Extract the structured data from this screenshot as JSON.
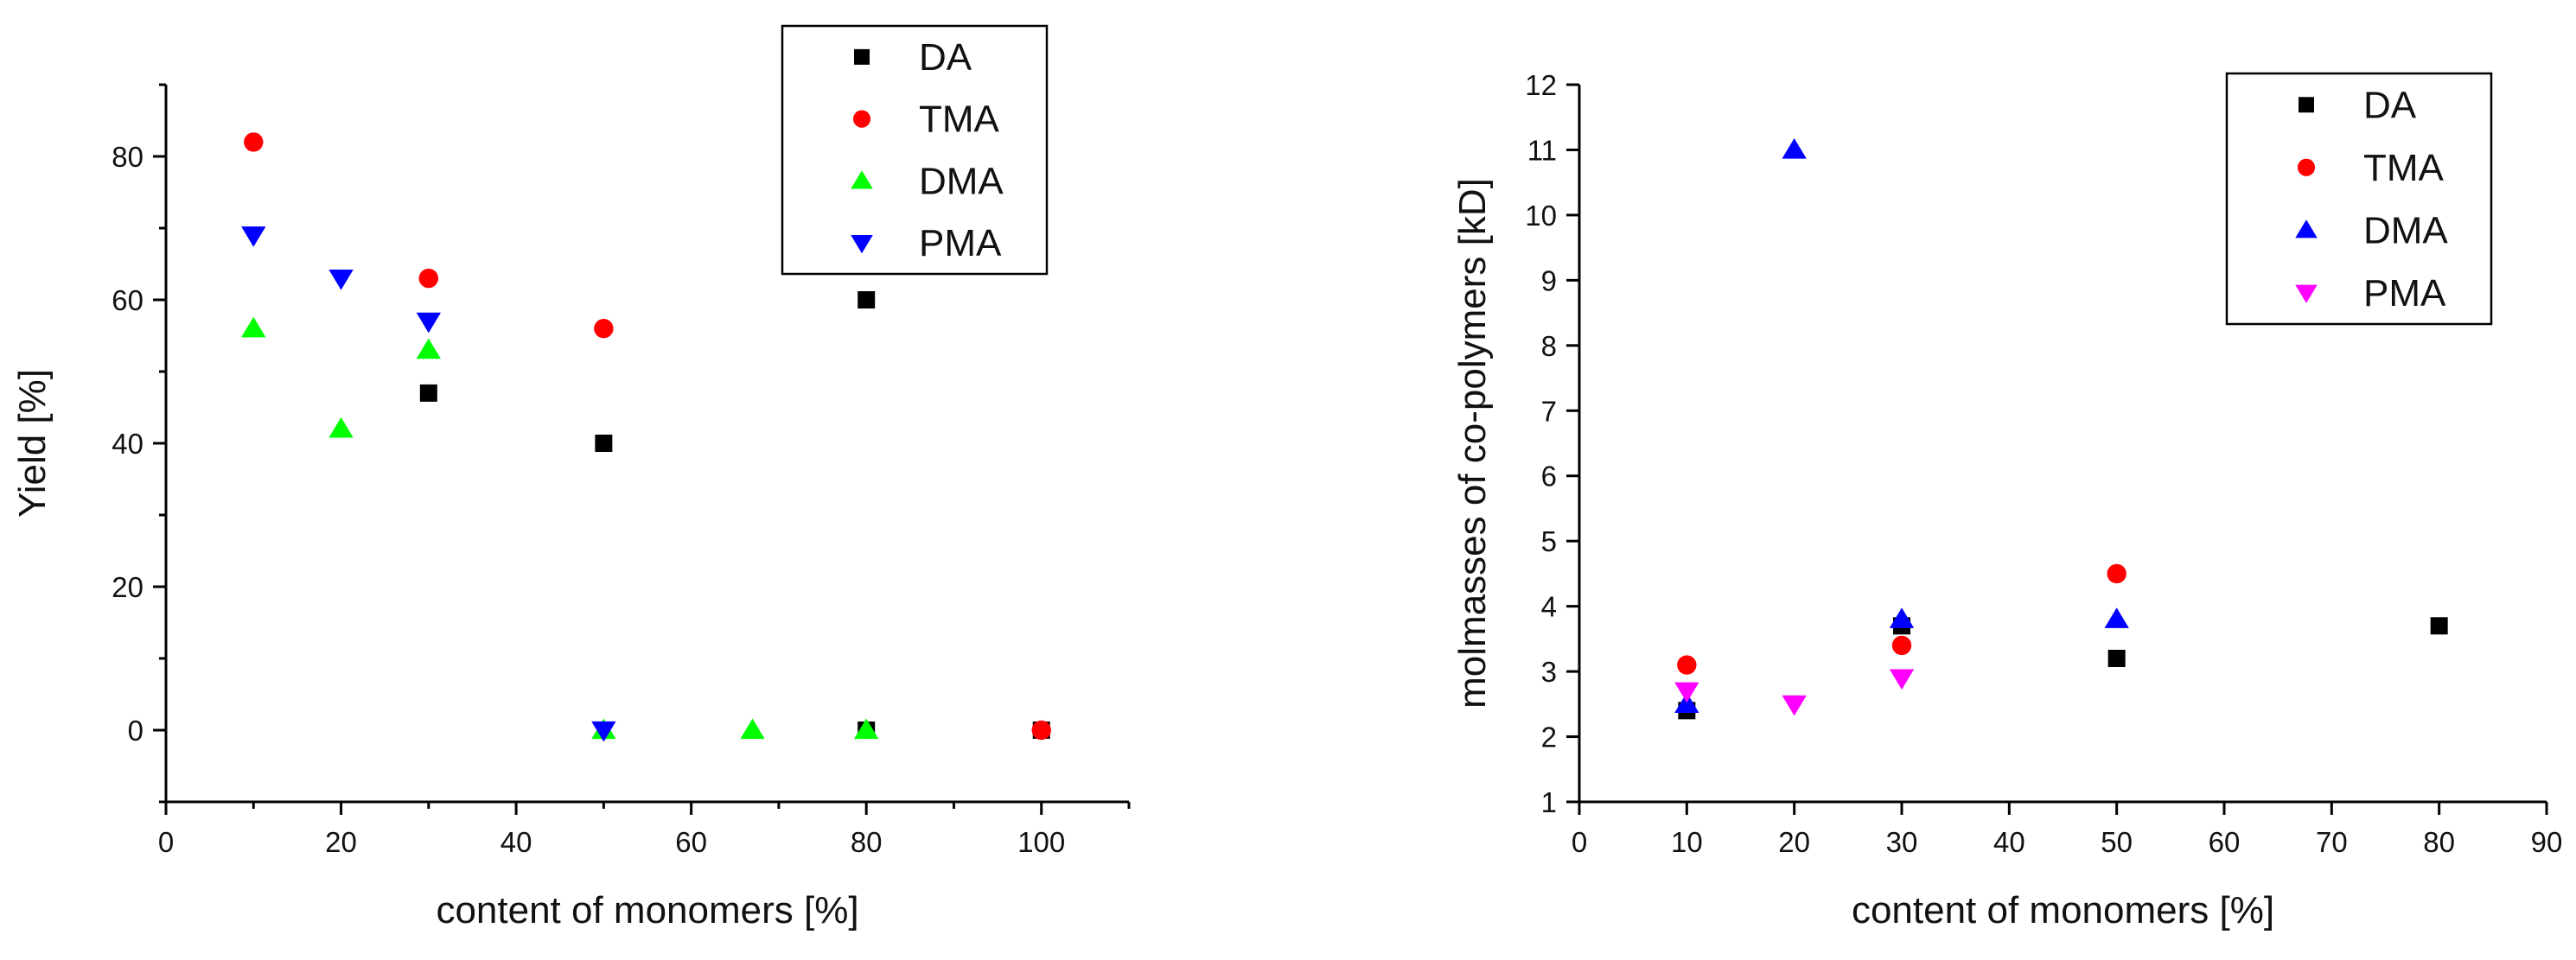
{
  "chart_data": [
    {
      "type": "scatter",
      "title": "",
      "xlabel": "content of monomers [%]",
      "ylabel": "Yield [%]",
      "xlim": [
        0,
        110
      ],
      "ylim": [
        -10,
        90
      ],
      "x_major_ticks": [
        0,
        20,
        40,
        60,
        80,
        100
      ],
      "y_major_ticks": [
        0,
        20,
        40,
        60,
        80
      ],
      "legend_position": "top-right",
      "series": [
        {
          "name": "DA",
          "marker": "square",
          "color": "#000000",
          "points": [
            [
              30,
              47
            ],
            [
              50,
              40
            ],
            [
              80,
              60
            ],
            [
              80,
              0
            ],
            [
              100,
              0
            ]
          ]
        },
        {
          "name": "TMA",
          "marker": "circle",
          "color": "#ff0000",
          "points": [
            [
              10,
              82
            ],
            [
              30,
              63
            ],
            [
              50,
              56
            ],
            [
              100,
              0
            ]
          ]
        },
        {
          "name": "DMA",
          "marker": "triangle-up",
          "color": "#00ff00",
          "points": [
            [
              10,
              56
            ],
            [
              20,
              42
            ],
            [
              30,
              53
            ],
            [
              50,
              0
            ],
            [
              67,
              0
            ],
            [
              80,
              0
            ]
          ]
        },
        {
          "name": "PMA",
          "marker": "triangle-down",
          "color": "#0000ff",
          "points": [
            [
              10,
              69
            ],
            [
              20,
              63
            ],
            [
              30,
              57
            ],
            [
              50,
              0
            ]
          ]
        }
      ]
    },
    {
      "type": "scatter",
      "title": "",
      "xlabel": "content of monomers [%]",
      "ylabel": "molmasses of co-polymers [kD]",
      "xlim": [
        0,
        90
      ],
      "ylim": [
        1,
        12
      ],
      "x_major_ticks": [
        0,
        10,
        20,
        30,
        40,
        50,
        60,
        70,
        80,
        90
      ],
      "y_major_ticks": [
        1,
        2,
        3,
        4,
        5,
        6,
        7,
        8,
        9,
        10,
        11,
        12
      ],
      "legend_position": "top-right",
      "series": [
        {
          "name": "DA",
          "marker": "square",
          "color": "#000000",
          "points": [
            [
              10,
              2.4
            ],
            [
              30,
              3.7
            ],
            [
              50,
              3.2
            ],
            [
              80,
              3.7
            ]
          ]
        },
        {
          "name": "TMA",
          "marker": "circle",
          "color": "#ff0000",
          "points": [
            [
              10,
              3.1
            ],
            [
              30,
              3.4
            ],
            [
              50,
              4.5
            ]
          ]
        },
        {
          "name": "DMA",
          "marker": "triangle-up",
          "color": "#0000ff",
          "points": [
            [
              10,
              2.5
            ],
            [
              20,
              11.0
            ],
            [
              30,
              3.8
            ],
            [
              50,
              3.8
            ]
          ]
        },
        {
          "name": "PMA",
          "marker": "triangle-down",
          "color": "#ff00ff",
          "points": [
            [
              10,
              2.7
            ],
            [
              20,
              2.5
            ],
            [
              30,
              2.9
            ]
          ]
        }
      ]
    }
  ]
}
